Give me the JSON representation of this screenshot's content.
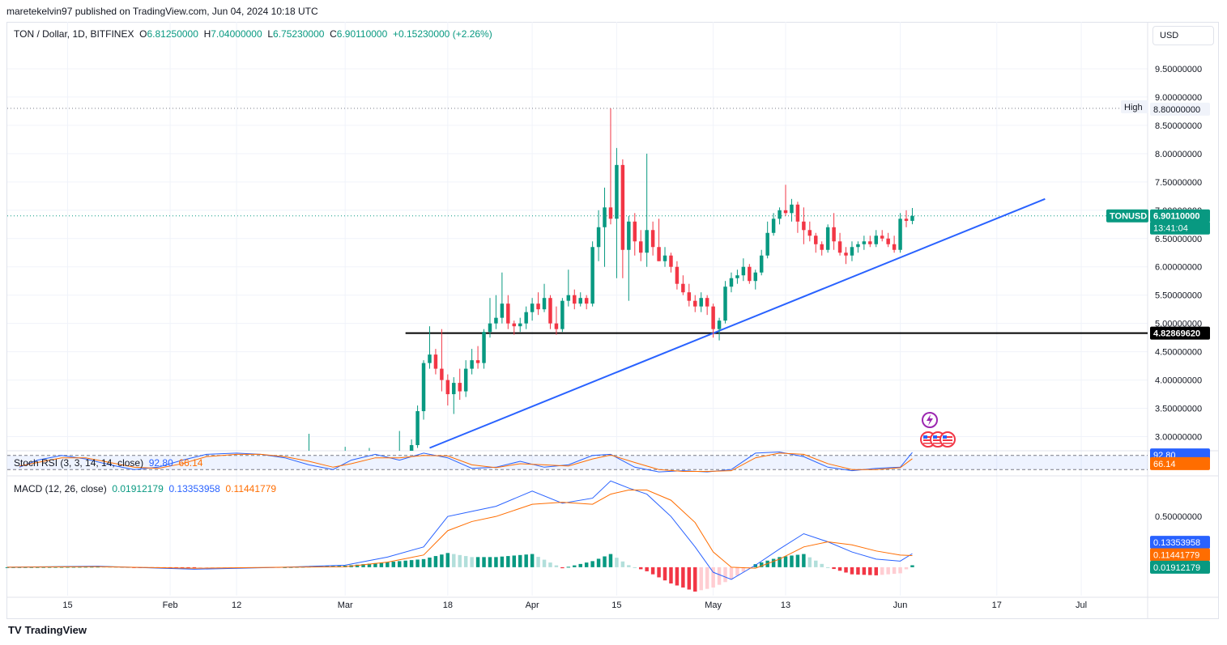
{
  "header": {
    "published": "maretekelvin97 published on TradingView.com, Jun 04, 2024 10:18 UTC"
  },
  "legend": {
    "symbol": "TON / Dollar, 1D, BITFINEX",
    "o_label": "O",
    "o": "6.81250000",
    "h_label": "H",
    "h": "7.04000000",
    "l_label": "L",
    "l": "6.75230000",
    "c_label": "C",
    "c": "6.90110000",
    "change": "+0.15230000 (+2.26%)"
  },
  "currency_button": "USD",
  "indicators": {
    "stoch": {
      "label": "Stoch RSI (3, 3, 14, 14, close)",
      "k": "92.80",
      "d": "66.14"
    },
    "macd": {
      "label": "MACD (12, 26, close)",
      "hist": "0.01912179",
      "macd": "0.13353958",
      "signal": "0.11441779"
    }
  },
  "footer": {
    "brand": "TradingView",
    "logo": "TV"
  },
  "colors": {
    "up": "#089981",
    "down": "#f23645",
    "blue": "#2962ff",
    "orange": "#ff6d00",
    "up_light": "#b2dfdb",
    "down_light": "#ffcdd2"
  },
  "chart_data": [
    {
      "type": "candlestick",
      "title": "TON / Dollar, 1D, BITFINEX",
      "y_axis": {
        "ticks": [
          "9.50000000",
          "9.00000000",
          "8.50000000",
          "8.00000000",
          "7.50000000",
          "7.00000000",
          "6.50000000",
          "6.00000000",
          "5.50000000",
          "5.00000000",
          "4.50000000",
          "4.00000000",
          "3.50000000",
          "3.00000000"
        ],
        "ylim": [
          2.75,
          9.9
        ]
      },
      "x_axis": {
        "ticks": [
          "15",
          "Feb",
          "12",
          "Mar",
          "18",
          "Apr",
          "15",
          "May",
          "13",
          "Jun",
          "17",
          "Jul"
        ],
        "tick_dates": [
          "2024-01-15",
          "2024-02-01",
          "2024-02-12",
          "2024-03-01",
          "2024-03-18",
          "2024-04-01",
          "2024-04-15",
          "2024-05-01",
          "2024-05-13",
          "2024-06-01",
          "2024-06-17",
          "2024-07-01"
        ],
        "range": [
          "2024-01-05",
          "2024-07-12"
        ]
      },
      "labels": {
        "high_tag": "High",
        "high_value": "8.80000000",
        "price_tag": "TONUSD",
        "price_value": "6.90110000",
        "countdown": "13:41:04",
        "support_value": "4.82869620"
      },
      "levels": {
        "high": 8.8,
        "last": 6.9011,
        "support": 4.8286962
      },
      "trendline": {
        "from": [
          "2024-03-15",
          2.8
        ],
        "to": [
          "2024-06-25",
          7.2
        ]
      },
      "support_line_start": "2024-03-11",
      "candles": [
        [
          "2024-03-12",
          2.6,
          2.95,
          2.55,
          2.85
        ],
        [
          "2024-03-13",
          2.85,
          3.55,
          2.8,
          3.45
        ],
        [
          "2024-03-14",
          3.45,
          4.35,
          3.3,
          4.3
        ],
        [
          "2024-03-15",
          4.3,
          4.95,
          4.2,
          4.45
        ],
        [
          "2024-03-16",
          4.45,
          4.55,
          4.1,
          4.2
        ],
        [
          "2024-03-17",
          4.2,
          4.9,
          3.8,
          4.0
        ],
        [
          "2024-03-18",
          4.0,
          4.1,
          3.55,
          3.75
        ],
        [
          "2024-03-19",
          3.75,
          4.05,
          3.4,
          3.95
        ],
        [
          "2024-03-20",
          3.95,
          4.2,
          3.65,
          3.8
        ],
        [
          "2024-03-21",
          3.8,
          4.35,
          3.7,
          4.2
        ],
        [
          "2024-03-22",
          4.2,
          4.55,
          4.1,
          4.35
        ],
        [
          "2024-03-23",
          4.35,
          4.6,
          4.2,
          4.3
        ],
        [
          "2024-03-24",
          4.3,
          4.9,
          4.2,
          4.85
        ],
        [
          "2024-03-25",
          4.85,
          5.45,
          4.75,
          5.0
        ],
        [
          "2024-03-26",
          5.0,
          5.5,
          4.9,
          5.1
        ],
        [
          "2024-03-27",
          5.1,
          5.9,
          5.0,
          5.35
        ],
        [
          "2024-03-28",
          5.35,
          5.5,
          4.9,
          5.0
        ],
        [
          "2024-03-29",
          5.0,
          5.05,
          4.8,
          4.95
        ],
        [
          "2024-03-30",
          4.95,
          5.1,
          4.85,
          5.0
        ],
        [
          "2024-03-31",
          5.0,
          5.3,
          4.9,
          5.2
        ],
        [
          "2024-04-01",
          5.2,
          5.45,
          5.05,
          5.35
        ],
        [
          "2024-04-02",
          5.35,
          5.55,
          5.15,
          5.25
        ],
        [
          "2024-04-03",
          5.25,
          5.7,
          5.2,
          5.45
        ],
        [
          "2024-04-04",
          5.45,
          5.5,
          4.9,
          5.0
        ],
        [
          "2024-04-05",
          5.0,
          5.3,
          4.8,
          4.9
        ],
        [
          "2024-04-06",
          4.9,
          5.45,
          4.85,
          5.4
        ],
        [
          "2024-04-07",
          5.4,
          5.95,
          5.3,
          5.5
        ],
        [
          "2024-04-08",
          5.5,
          5.6,
          5.25,
          5.35
        ],
        [
          "2024-04-09",
          5.35,
          5.55,
          5.3,
          5.45
        ],
        [
          "2024-04-10",
          5.45,
          5.5,
          5.25,
          5.35
        ],
        [
          "2024-04-11",
          5.35,
          6.45,
          5.3,
          6.35
        ],
        [
          "2024-04-12",
          6.35,
          7.0,
          6.1,
          6.7
        ],
        [
          "2024-04-13",
          6.7,
          7.4,
          6.0,
          7.05
        ],
        [
          "2024-04-14",
          7.05,
          8.8,
          6.75,
          6.85
        ],
        [
          "2024-04-15",
          6.85,
          8.1,
          5.8,
          7.8
        ],
        [
          "2024-04-16",
          7.8,
          7.9,
          5.8,
          6.3
        ],
        [
          "2024-04-17",
          6.3,
          6.9,
          5.4,
          6.8
        ],
        [
          "2024-04-18",
          6.8,
          6.95,
          6.2,
          6.45
        ],
        [
          "2024-04-19",
          6.45,
          6.65,
          6.1,
          6.25
        ],
        [
          "2024-04-20",
          6.25,
          8.0,
          6.0,
          6.65
        ],
        [
          "2024-04-21",
          6.65,
          6.8,
          6.2,
          6.35
        ],
        [
          "2024-04-22",
          6.35,
          6.85,
          6.1,
          6.1
        ],
        [
          "2024-04-23",
          6.1,
          6.35,
          6.0,
          6.2
        ],
        [
          "2024-04-24",
          6.2,
          6.25,
          5.9,
          6.0
        ],
        [
          "2024-04-25",
          6.0,
          6.1,
          5.6,
          5.7
        ],
        [
          "2024-04-26",
          5.7,
          5.85,
          5.5,
          5.55
        ],
        [
          "2024-04-27",
          5.55,
          5.7,
          5.3,
          5.4
        ],
        [
          "2024-04-28",
          5.4,
          5.5,
          5.2,
          5.3
        ],
        [
          "2024-04-29",
          5.3,
          5.55,
          5.2,
          5.45
        ],
        [
          "2024-04-30",
          5.45,
          5.5,
          5.15,
          5.3
        ],
        [
          "2024-05-01",
          5.3,
          5.35,
          4.75,
          4.9
        ],
        [
          "2024-05-02",
          4.9,
          5.1,
          4.7,
          5.05
        ],
        [
          "2024-05-03",
          5.05,
          5.75,
          5.0,
          5.65
        ],
        [
          "2024-05-04",
          5.65,
          5.9,
          5.55,
          5.8
        ],
        [
          "2024-05-05",
          5.8,
          5.95,
          5.7,
          5.85
        ],
        [
          "2024-05-06",
          5.85,
          6.15,
          5.75,
          6.0
        ],
        [
          "2024-05-07",
          6.0,
          6.05,
          5.7,
          5.75
        ],
        [
          "2024-05-08",
          5.75,
          5.95,
          5.6,
          5.9
        ],
        [
          "2024-05-09",
          5.9,
          6.3,
          5.85,
          6.2
        ],
        [
          "2024-05-10",
          6.2,
          6.8,
          6.15,
          6.6
        ],
        [
          "2024-05-11",
          6.6,
          6.95,
          6.55,
          6.85
        ],
        [
          "2024-05-12",
          6.85,
          7.05,
          6.75,
          7.0
        ],
        [
          "2024-05-13",
          7.0,
          7.45,
          6.9,
          6.95
        ],
        [
          "2024-05-14",
          6.95,
          7.2,
          6.8,
          7.1
        ],
        [
          "2024-05-15",
          7.1,
          7.15,
          6.6,
          6.8
        ],
        [
          "2024-05-16",
          6.8,
          7.05,
          6.4,
          6.65
        ],
        [
          "2024-05-17",
          6.65,
          6.8,
          6.45,
          6.55
        ],
        [
          "2024-05-18",
          6.55,
          6.6,
          6.25,
          6.4
        ],
        [
          "2024-05-19",
          6.4,
          6.45,
          6.2,
          6.3
        ],
        [
          "2024-05-20",
          6.3,
          6.75,
          6.25,
          6.7
        ],
        [
          "2024-05-21",
          6.7,
          6.95,
          6.3,
          6.45
        ],
        [
          "2024-05-22",
          6.45,
          6.6,
          6.2,
          6.25
        ],
        [
          "2024-05-23",
          6.25,
          6.35,
          6.05,
          6.2
        ],
        [
          "2024-05-24",
          6.2,
          6.45,
          6.1,
          6.35
        ],
        [
          "2024-05-25",
          6.35,
          6.45,
          6.25,
          6.4
        ],
        [
          "2024-05-26",
          6.4,
          6.55,
          6.3,
          6.45
        ],
        [
          "2024-05-27",
          6.45,
          6.55,
          6.35,
          6.4
        ],
        [
          "2024-05-28",
          6.4,
          6.65,
          6.35,
          6.55
        ],
        [
          "2024-05-29",
          6.55,
          6.65,
          6.45,
          6.5
        ],
        [
          "2024-05-30",
          6.5,
          6.6,
          6.35,
          6.4
        ],
        [
          "2024-05-31",
          6.4,
          6.55,
          6.25,
          6.3
        ],
        [
          "2024-06-01",
          6.3,
          6.95,
          6.25,
          6.85
        ],
        [
          "2024-06-02",
          6.85,
          7.0,
          6.7,
          6.8125
        ],
        [
          "2024-06-03",
          6.8125,
          7.04,
          6.7523,
          6.9011
        ]
      ],
      "early_wicks": [
        [
          "2024-02-24",
          3.05,
          2.75
        ],
        [
          "2024-03-01",
          2.82,
          2.75
        ],
        [
          "2024-03-05",
          2.8,
          2.75
        ],
        [
          "2024-03-10",
          3.1,
          2.75
        ]
      ]
    },
    {
      "type": "line",
      "title": "Stoch RSI (3, 3, 14, 14, close)",
      "ylim": [
        0,
        100
      ],
      "bands": [
        80,
        20
      ],
      "x": [
        "2024-01-07",
        "2024-01-10",
        "2024-01-14",
        "2024-01-18",
        "2024-01-22",
        "2024-01-26",
        "2024-01-30",
        "2024-02-03",
        "2024-02-07",
        "2024-02-12",
        "2024-02-16",
        "2024-02-20",
        "2024-02-24",
        "2024-02-28",
        "2024-03-02",
        "2024-03-06",
        "2024-03-10",
        "2024-03-14",
        "2024-03-18",
        "2024-03-22",
        "2024-03-26",
        "2024-03-30",
        "2024-04-03",
        "2024-04-07",
        "2024-04-11",
        "2024-04-14",
        "2024-04-18",
        "2024-04-22",
        "2024-04-26",
        "2024-04-30",
        "2024-05-04",
        "2024-05-08",
        "2024-05-12",
        "2024-05-16",
        "2024-05-20",
        "2024-05-24",
        "2024-05-28",
        "2024-06-01",
        "2024-06-03"
      ],
      "series": [
        {
          "name": "K",
          "values": [
            30,
            60,
            80,
            65,
            40,
            20,
            30,
            60,
            85,
            90,
            85,
            70,
            40,
            20,
            60,
            85,
            60,
            90,
            70,
            25,
            30,
            55,
            30,
            40,
            80,
            85,
            30,
            10,
            15,
            10,
            20,
            90,
            95,
            75,
            30,
            15,
            25,
            30,
            92.8
          ]
        },
        {
          "name": "D",
          "values": [
            35,
            50,
            70,
            70,
            50,
            30,
            25,
            45,
            75,
            85,
            85,
            75,
            55,
            30,
            45,
            70,
            70,
            80,
            78,
            40,
            28,
            45,
            40,
            35,
            65,
            82,
            50,
            20,
            12,
            12,
            15,
            70,
            90,
            85,
            45,
            20,
            20,
            28,
            66.14
          ]
        }
      ]
    },
    {
      "type": "line",
      "title": "MACD (12, 26, close)",
      "y_axis": {
        "ticks": [
          "0.50000000"
        ],
        "ylim": [
          -0.28,
          0.9
        ]
      },
      "x": [
        "2024-01-05",
        "2024-01-20",
        "2024-02-05",
        "2024-02-20",
        "2024-03-01",
        "2024-03-08",
        "2024-03-14",
        "2024-03-18",
        "2024-03-22",
        "2024-03-26",
        "2024-04-01",
        "2024-04-06",
        "2024-04-11",
        "2024-04-14",
        "2024-04-17",
        "2024-04-20",
        "2024-04-24",
        "2024-04-28",
        "2024-05-01",
        "2024-05-04",
        "2024-05-08",
        "2024-05-12",
        "2024-05-16",
        "2024-05-20",
        "2024-05-24",
        "2024-05-28",
        "2024-06-01",
        "2024-06-03"
      ],
      "series": [
        {
          "name": "MACD",
          "values": [
            0,
            0.01,
            -0.02,
            0,
            0.02,
            0.1,
            0.2,
            0.5,
            0.55,
            0.6,
            0.75,
            0.63,
            0.68,
            0.85,
            0.78,
            0.72,
            0.5,
            0.2,
            -0.05,
            -0.12,
            0.02,
            0.18,
            0.33,
            0.25,
            0.15,
            0.08,
            0.06,
            0.1335
          ]
        },
        {
          "name": "Signal",
          "values": [
            0,
            0.005,
            -0.01,
            0,
            0.005,
            0.05,
            0.12,
            0.36,
            0.45,
            0.5,
            0.62,
            0.64,
            0.62,
            0.72,
            0.76,
            0.76,
            0.66,
            0.44,
            0.15,
            0.0,
            -0.01,
            0.08,
            0.2,
            0.25,
            0.22,
            0.16,
            0.12,
            0.1144
          ]
        },
        {
          "name": "Histogram",
          "values": [
            0,
            0.005,
            -0.01,
            0,
            0.015,
            0.05,
            0.08,
            0.14,
            0.1,
            0.1,
            0.13,
            -0.01,
            0.06,
            0.13,
            0.02,
            -0.04,
            -0.16,
            -0.24,
            -0.2,
            -0.12,
            0.03,
            0.1,
            0.13,
            0.0,
            -0.07,
            -0.08,
            -0.06,
            0.0191
          ]
        }
      ]
    }
  ]
}
